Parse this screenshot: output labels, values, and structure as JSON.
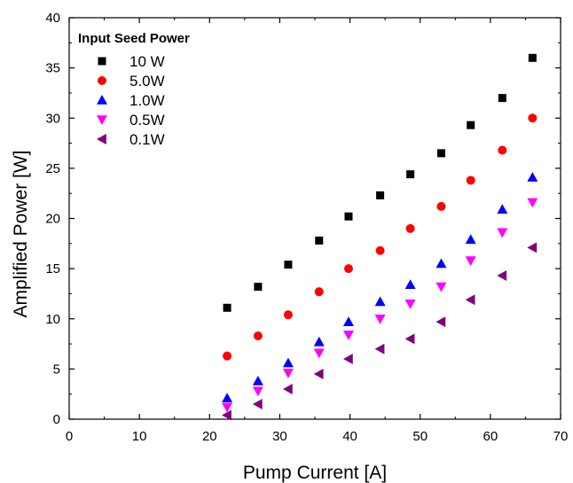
{
  "chart_data": {
    "type": "scatter",
    "xlabel": "Pump Current [A]",
    "ylabel": "Amplified Power [W]",
    "xlim": [
      0,
      70
    ],
    "ylim": [
      0,
      40
    ],
    "xticks": [
      0,
      10,
      20,
      30,
      40,
      50,
      60,
      70
    ],
    "yticks": [
      0,
      5,
      10,
      15,
      20,
      25,
      30,
      35,
      40
    ],
    "grid": false,
    "legend": {
      "title": "Input Seed Power",
      "position": "top-left"
    },
    "x": [
      22.5,
      26.9,
      31.2,
      35.6,
      39.8,
      44.3,
      48.6,
      53.0,
      57.2,
      61.7,
      66.0
    ],
    "series": [
      {
        "name": "10 W",
        "marker": "square",
        "color": "#000000",
        "values": [
          11.1,
          13.2,
          15.4,
          17.8,
          20.2,
          22.3,
          24.4,
          26.5,
          29.3,
          32.0,
          36.0
        ]
      },
      {
        "name": "5.0W",
        "marker": "circle",
        "color": "#ff0000",
        "values": [
          6.3,
          8.3,
          10.4,
          12.7,
          15.0,
          16.8,
          19.0,
          21.2,
          23.8,
          26.8,
          30.0
        ]
      },
      {
        "name": "1.0W",
        "marker": "triangle-up",
        "color": "#0000ff",
        "values": [
          2.1,
          3.8,
          5.6,
          7.7,
          9.7,
          11.7,
          13.4,
          15.5,
          17.9,
          20.9,
          24.1
        ]
      },
      {
        "name": "0.5W",
        "marker": "triangle-down",
        "color": "#ff00ff",
        "values": [
          1.2,
          2.8,
          4.6,
          6.6,
          8.4,
          10.0,
          11.5,
          13.2,
          15.8,
          18.6,
          21.6
        ]
      },
      {
        "name": "0.1W",
        "marker": "triangle-left",
        "color": "#800080",
        "values": [
          0.4,
          1.5,
          3.0,
          4.5,
          6.0,
          7.0,
          8.0,
          9.7,
          11.9,
          14.3,
          17.1
        ]
      }
    ]
  }
}
